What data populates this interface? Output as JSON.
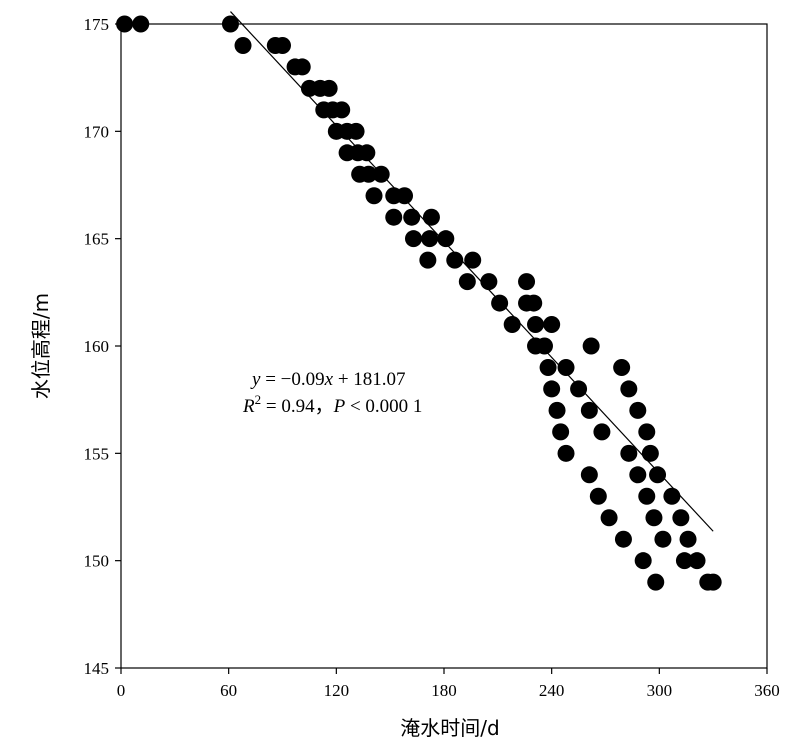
{
  "chart_data": {
    "type": "scatter",
    "xlabel": "淹水时间/d",
    "ylabel": "水位高程/m",
    "xlim": [
      0,
      360
    ],
    "ylim": [
      145,
      175
    ],
    "xticks": [
      0,
      60,
      120,
      180,
      240,
      300,
      360
    ],
    "yticks": [
      145,
      150,
      155,
      160,
      165,
      170,
      175
    ],
    "grid": false,
    "legend": "none",
    "equation": {
      "line1_y": "y",
      "line1_mid": " = −0.09",
      "line1_x": "x",
      "line1_tail": " + 181.07",
      "line2_R": "R",
      "line2_sup": "2",
      "line2_mid": " = 0.94，",
      "line2_P": "P",
      "line2_tail": " < 0.000 1"
    },
    "fit_line": {
      "slope": -0.09,
      "intercept": 181.07,
      "x_range": [
        61,
        330
      ]
    },
    "points": [
      [
        2,
        175
      ],
      [
        11,
        175
      ],
      [
        61,
        175
      ],
      [
        68,
        174
      ],
      [
        86,
        174
      ],
      [
        90,
        174
      ],
      [
        97,
        173
      ],
      [
        101,
        173
      ],
      [
        105,
        172
      ],
      [
        111,
        172
      ],
      [
        116,
        172
      ],
      [
        113,
        171
      ],
      [
        118,
        171
      ],
      [
        123,
        171
      ],
      [
        120,
        170
      ],
      [
        126,
        170
      ],
      [
        131,
        170
      ],
      [
        126,
        169
      ],
      [
        132,
        169
      ],
      [
        137,
        169
      ],
      [
        133,
        168
      ],
      [
        138,
        168
      ],
      [
        145,
        168
      ],
      [
        141,
        167
      ],
      [
        152,
        167
      ],
      [
        158,
        167
      ],
      [
        152,
        166
      ],
      [
        162,
        166
      ],
      [
        173,
        166
      ],
      [
        163,
        165
      ],
      [
        172,
        165
      ],
      [
        181,
        165
      ],
      [
        171,
        164
      ],
      [
        186,
        164
      ],
      [
        196,
        164
      ],
      [
        193,
        163
      ],
      [
        205,
        163
      ],
      [
        211,
        162
      ],
      [
        226,
        163
      ],
      [
        226,
        162
      ],
      [
        230,
        162
      ],
      [
        218,
        161
      ],
      [
        231,
        161
      ],
      [
        240,
        161
      ],
      [
        231,
        160
      ],
      [
        236,
        160
      ],
      [
        262,
        160
      ],
      [
        238,
        159
      ],
      [
        248,
        159
      ],
      [
        279,
        159
      ],
      [
        240,
        158
      ],
      [
        255,
        158
      ],
      [
        283,
        158
      ],
      [
        243,
        157
      ],
      [
        261,
        157
      ],
      [
        288,
        157
      ],
      [
        245,
        156
      ],
      [
        268,
        156
      ],
      [
        293,
        156
      ],
      [
        248,
        155
      ],
      [
        283,
        155
      ],
      [
        295,
        155
      ],
      [
        261,
        154
      ],
      [
        288,
        154
      ],
      [
        299,
        154
      ],
      [
        266,
        153
      ],
      [
        293,
        153
      ],
      [
        307,
        153
      ],
      [
        272,
        152
      ],
      [
        297,
        152
      ],
      [
        312,
        152
      ],
      [
        280,
        151
      ],
      [
        302,
        151
      ],
      [
        316,
        151
      ],
      [
        291,
        150
      ],
      [
        314,
        150
      ],
      [
        321,
        150
      ],
      [
        298,
        149
      ],
      [
        327,
        149
      ],
      [
        330,
        149
      ]
    ]
  }
}
